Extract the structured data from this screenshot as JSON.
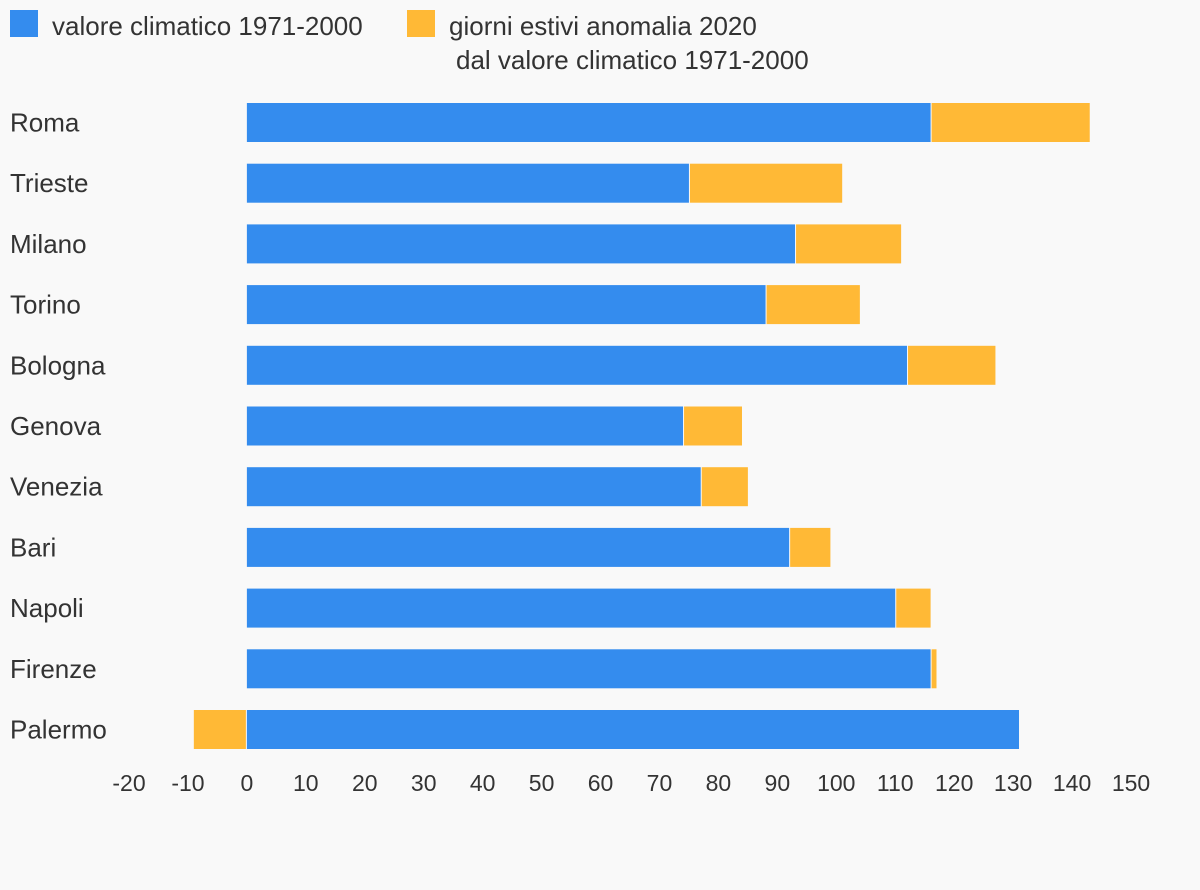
{
  "colors": {
    "blue": "#348cee",
    "orange": "#ffb936",
    "background": "#f9f9f9",
    "text": "#333333"
  },
  "chart_data": {
    "type": "bar",
    "orientation": "horizontal",
    "stacked": true,
    "title": "",
    "xlabel": "",
    "ylabel": "",
    "xlim": [
      -20,
      150
    ],
    "x_ticks": [
      -20,
      -10,
      0,
      10,
      20,
      30,
      40,
      50,
      60,
      70,
      80,
      90,
      100,
      110,
      120,
      130,
      140,
      150
    ],
    "grid": false,
    "legend": {
      "placement": "top-left",
      "entries": [
        {
          "label": "valore climatico 1971-2000",
          "color": "#348cee"
        },
        {
          "label_line1": "giorni estivi anomalia 2020",
          "label_line2": "dal valore climatico 1971-2000",
          "color": "#ffb936"
        }
      ]
    },
    "categories": [
      "Roma",
      "Trieste",
      "Milano",
      "Torino",
      "Bologna",
      "Genova",
      "Venezia",
      "Bari",
      "Napoli",
      "Firenze",
      "Palermo"
    ],
    "series": [
      {
        "name": "valore climatico 1971-2000",
        "values": [
          116,
          75,
          93,
          88,
          112,
          74,
          77,
          92,
          110,
          116,
          131
        ]
      },
      {
        "name": "giorni estivi anomalia 2020 dal valore climatico 1971-2000",
        "values": [
          27,
          26,
          18,
          16,
          15,
          10,
          8,
          7,
          6,
          1,
          -9
        ]
      }
    ]
  }
}
